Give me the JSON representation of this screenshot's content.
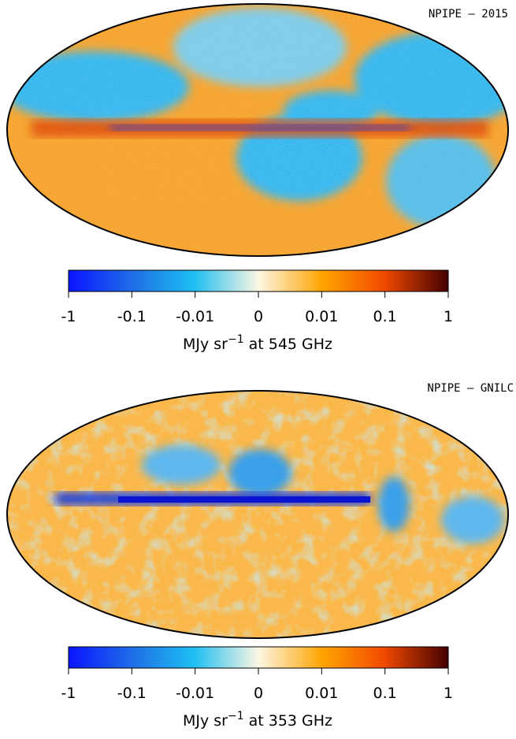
{
  "panels": [
    {
      "label": "NPIPE — 2015",
      "ticks": [
        "-1",
        "-0.1",
        "-0.01",
        "0",
        "0.01",
        "0.1",
        "1"
      ],
      "axis_label": {
        "unit": "MJy sr",
        "exponent": "−1",
        "suffix": "at 545 GHz"
      }
    },
    {
      "label": "NPIPE — GNILC",
      "ticks": [
        "-1",
        "-0.1",
        "-0.01",
        "0",
        "0.01",
        "0.1",
        "1"
      ],
      "axis_label": {
        "unit": "MJy sr",
        "exponent": "−1",
        "suffix": "at 353 GHz"
      }
    }
  ]
}
